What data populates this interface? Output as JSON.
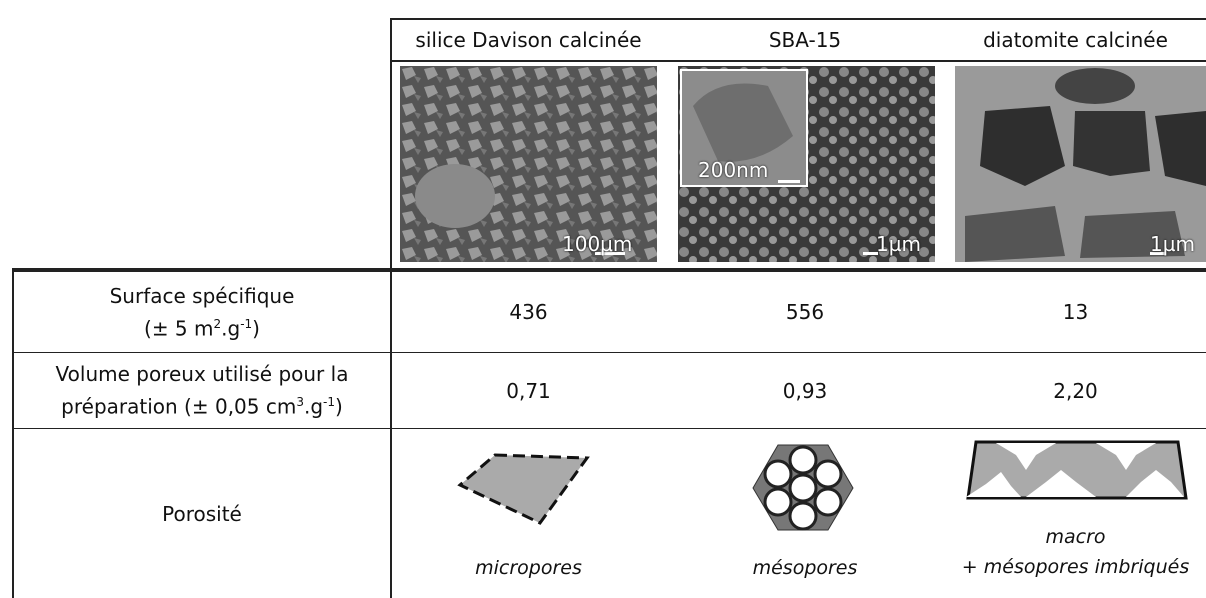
{
  "header": {
    "columns": [
      "silice Davison calcinée",
      "SBA-15",
      "diatomite calcinée"
    ]
  },
  "images": [
    {
      "scale_bar": "100µm"
    },
    {
      "scale_bar": "1µm",
      "inset_scale_bar": "200nm"
    },
    {
      "scale_bar": "1µm"
    }
  ],
  "rows": [
    {
      "label": [
        "Surface spécifique",
        "(± 5 m",
        "2",
        ".g",
        "-1",
        ")"
      ],
      "values": [
        "436",
        "556",
        "13"
      ]
    },
    {
      "label": [
        "Volume poreux utilisé pour la",
        "préparation (± 0,05 cm",
        "3",
        ".g",
        "-1",
        ")"
      ],
      "values": [
        "0,71",
        "0,93",
        "2,20"
      ]
    },
    {
      "label": [
        "Porosité"
      ],
      "captions": [
        "micropores",
        "mésopores",
        "macro",
        "+ mésopores imbriqués"
      ]
    }
  ]
}
